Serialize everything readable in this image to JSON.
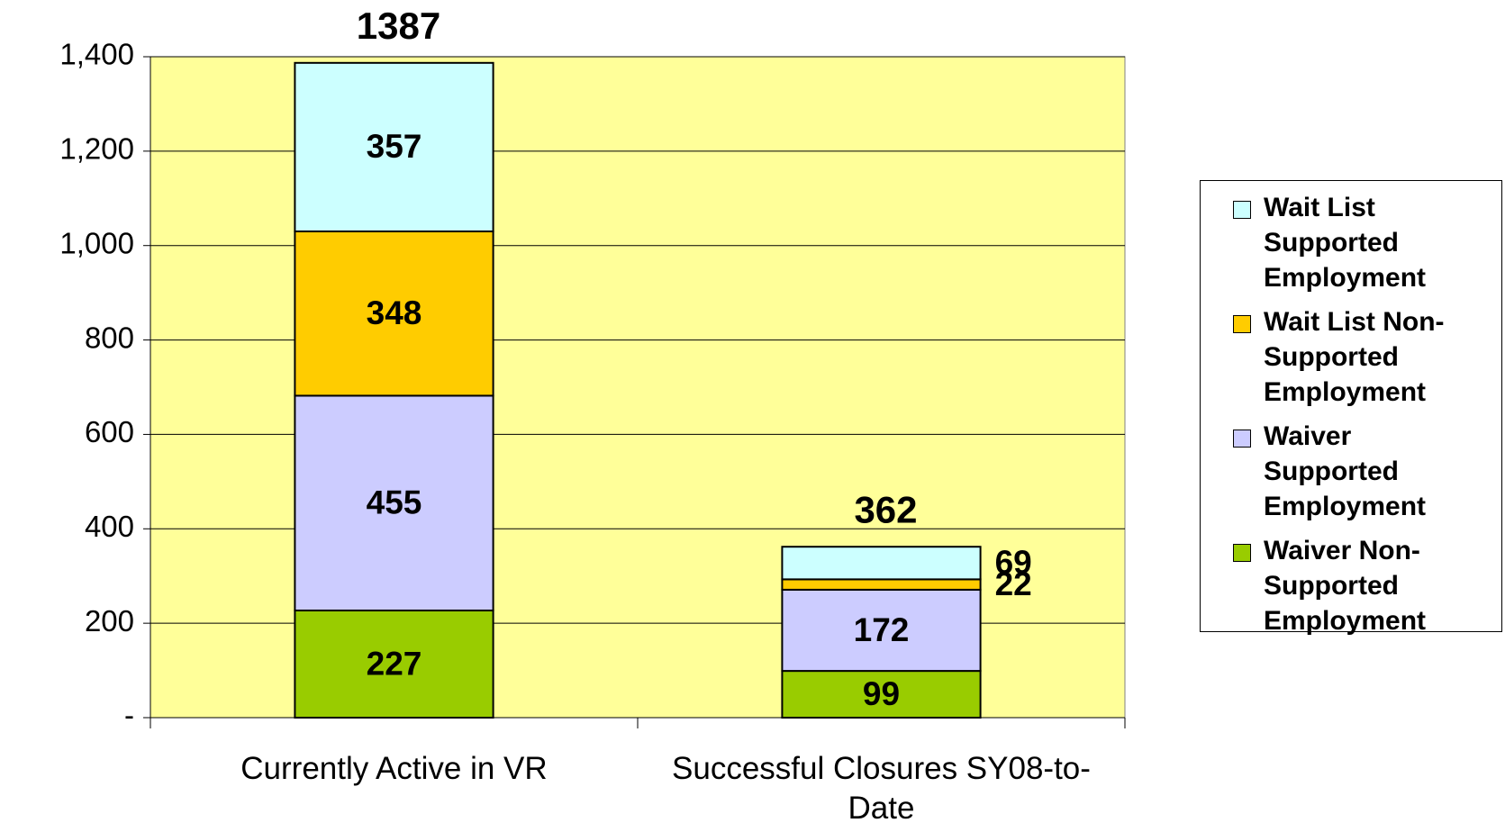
{
  "chart_data": {
    "type": "stacked_bar",
    "categories": [
      "Currently Active in VR",
      "Successful Closures SY08-to-Date"
    ],
    "series": [
      {
        "name": "Waiver Non-Supported Employment",
        "color": "#99cc00",
        "values": [
          227,
          99
        ]
      },
      {
        "name": "Waiver Supported Employment",
        "color": "#ccccff",
        "values": [
          455,
          172
        ]
      },
      {
        "name": "Wait List Non-Supported Employment",
        "color": "#ffcc00",
        "values": [
          348,
          22
        ]
      },
      {
        "name": "Wait List Supported Employment",
        "color": "#ccffff",
        "values": [
          357,
          69
        ]
      }
    ],
    "totals": [
      1387,
      362
    ],
    "ylim": [
      0,
      1400
    ],
    "yticks": [
      {
        "value": 0,
        "label": "-"
      },
      200,
      400,
      600,
      800,
      {
        "value": 1000,
        "label": "1,000"
      },
      {
        "value": 1200,
        "label": "1,200"
      },
      {
        "value": 1400,
        "label": "1,400"
      }
    ],
    "grid": true,
    "plot_background": "#ffff99",
    "legend": "right"
  }
}
